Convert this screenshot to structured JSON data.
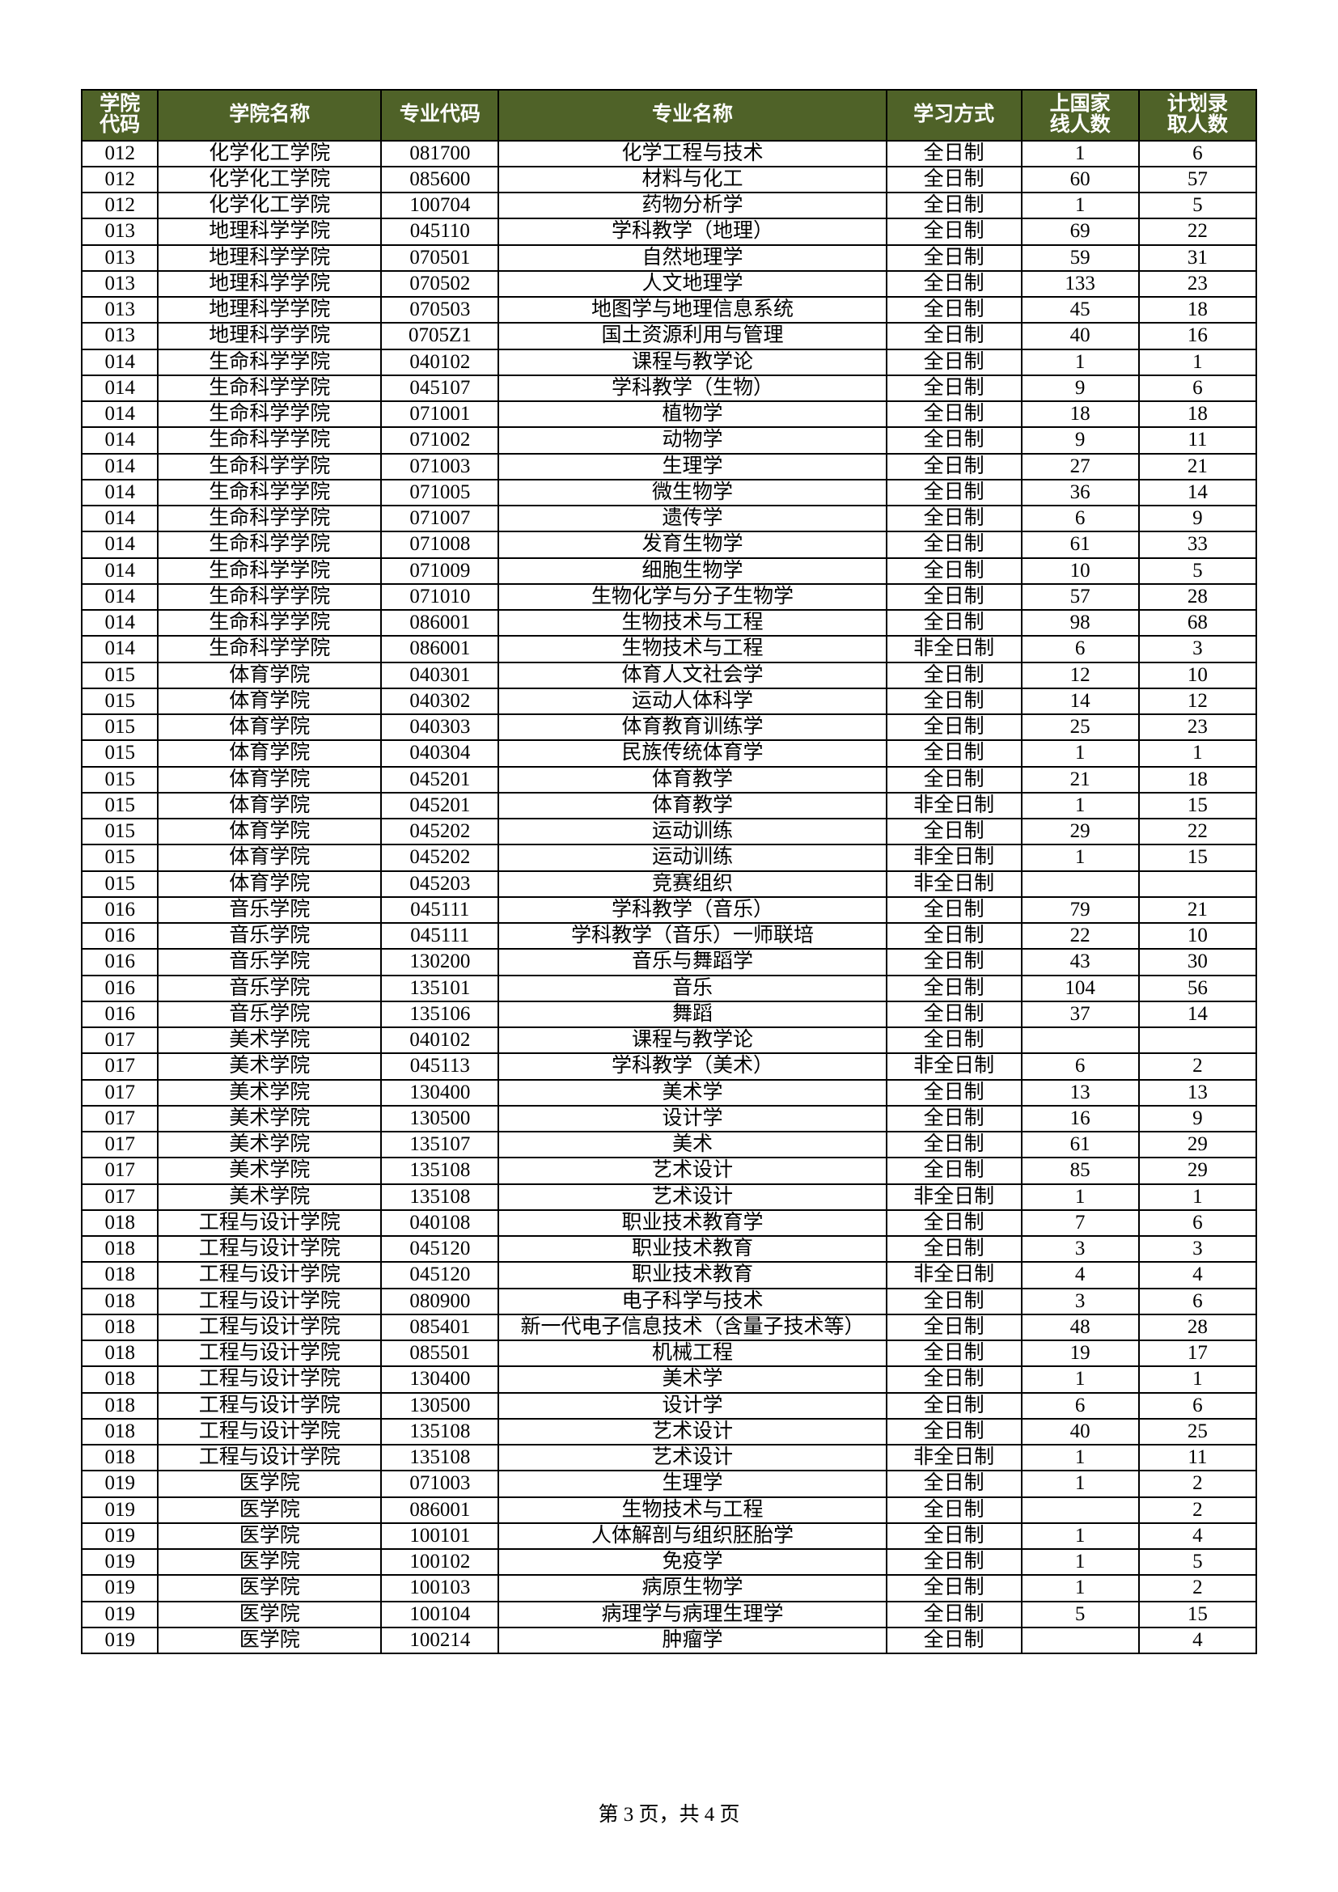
{
  "table": {
    "header_bg": "#4f6228",
    "header_fg": "#ffffff",
    "border_color": "#000000",
    "columns": [
      "学院代码",
      "学院名称",
      "专业代码",
      "专业名称",
      "学习方式",
      "上国家线人数",
      "计划录取人数"
    ],
    "rows": [
      [
        "012",
        "化学化工学院",
        "081700",
        "化学工程与技术",
        "全日制",
        "1",
        "6"
      ],
      [
        "012",
        "化学化工学院",
        "085600",
        "材料与化工",
        "全日制",
        "60",
        "57"
      ],
      [
        "012",
        "化学化工学院",
        "100704",
        "药物分析学",
        "全日制",
        "1",
        "5"
      ],
      [
        "013",
        "地理科学学院",
        "045110",
        "学科教学（地理）",
        "全日制",
        "69",
        "22"
      ],
      [
        "013",
        "地理科学学院",
        "070501",
        "自然地理学",
        "全日制",
        "59",
        "31"
      ],
      [
        "013",
        "地理科学学院",
        "070502",
        "人文地理学",
        "全日制",
        "133",
        "23"
      ],
      [
        "013",
        "地理科学学院",
        "070503",
        "地图学与地理信息系统",
        "全日制",
        "45",
        "18"
      ],
      [
        "013",
        "地理科学学院",
        "0705Z1",
        "国土资源利用与管理",
        "全日制",
        "40",
        "16"
      ],
      [
        "014",
        "生命科学学院",
        "040102",
        "课程与教学论",
        "全日制",
        "1",
        "1"
      ],
      [
        "014",
        "生命科学学院",
        "045107",
        "学科教学（生物）",
        "全日制",
        "9",
        "6"
      ],
      [
        "014",
        "生命科学学院",
        "071001",
        "植物学",
        "全日制",
        "18",
        "18"
      ],
      [
        "014",
        "生命科学学院",
        "071002",
        "动物学",
        "全日制",
        "9",
        "11"
      ],
      [
        "014",
        "生命科学学院",
        "071003",
        "生理学",
        "全日制",
        "27",
        "21"
      ],
      [
        "014",
        "生命科学学院",
        "071005",
        "微生物学",
        "全日制",
        "36",
        "14"
      ],
      [
        "014",
        "生命科学学院",
        "071007",
        "遗传学",
        "全日制",
        "6",
        "9"
      ],
      [
        "014",
        "生命科学学院",
        "071008",
        "发育生物学",
        "全日制",
        "61",
        "33"
      ],
      [
        "014",
        "生命科学学院",
        "071009",
        "细胞生物学",
        "全日制",
        "10",
        "5"
      ],
      [
        "014",
        "生命科学学院",
        "071010",
        "生物化学与分子生物学",
        "全日制",
        "57",
        "28"
      ],
      [
        "014",
        "生命科学学院",
        "086001",
        "生物技术与工程",
        "全日制",
        "98",
        "68"
      ],
      [
        "014",
        "生命科学学院",
        "086001",
        "生物技术与工程",
        "非全日制",
        "6",
        "3"
      ],
      [
        "015",
        "体育学院",
        "040301",
        "体育人文社会学",
        "全日制",
        "12",
        "10"
      ],
      [
        "015",
        "体育学院",
        "040302",
        "运动人体科学",
        "全日制",
        "14",
        "12"
      ],
      [
        "015",
        "体育学院",
        "040303",
        "体育教育训练学",
        "全日制",
        "25",
        "23"
      ],
      [
        "015",
        "体育学院",
        "040304",
        "民族传统体育学",
        "全日制",
        "1",
        "1"
      ],
      [
        "015",
        "体育学院",
        "045201",
        "体育教学",
        "全日制",
        "21",
        "18"
      ],
      [
        "015",
        "体育学院",
        "045201",
        "体育教学",
        "非全日制",
        "1",
        "15"
      ],
      [
        "015",
        "体育学院",
        "045202",
        "运动训练",
        "全日制",
        "29",
        "22"
      ],
      [
        "015",
        "体育学院",
        "045202",
        "运动训练",
        "非全日制",
        "1",
        "15"
      ],
      [
        "015",
        "体育学院",
        "045203",
        "竞赛组织",
        "非全日制",
        "",
        ""
      ],
      [
        "016",
        "音乐学院",
        "045111",
        "学科教学（音乐）",
        "全日制",
        "79",
        "21"
      ],
      [
        "016",
        "音乐学院",
        "045111",
        "学科教学（音乐）一师联培",
        "全日制",
        "22",
        "10"
      ],
      [
        "016",
        "音乐学院",
        "130200",
        "音乐与舞蹈学",
        "全日制",
        "43",
        "30"
      ],
      [
        "016",
        "音乐学院",
        "135101",
        "音乐",
        "全日制",
        "104",
        "56"
      ],
      [
        "016",
        "音乐学院",
        "135106",
        "舞蹈",
        "全日制",
        "37",
        "14"
      ],
      [
        "017",
        "美术学院",
        "040102",
        "课程与教学论",
        "全日制",
        "",
        ""
      ],
      [
        "017",
        "美术学院",
        "045113",
        "学科教学（美术）",
        "非全日制",
        "6",
        "2"
      ],
      [
        "017",
        "美术学院",
        "130400",
        "美术学",
        "全日制",
        "13",
        "13"
      ],
      [
        "017",
        "美术学院",
        "130500",
        "设计学",
        "全日制",
        "16",
        "9"
      ],
      [
        "017",
        "美术学院",
        "135107",
        "美术",
        "全日制",
        "61",
        "29"
      ],
      [
        "017",
        "美术学院",
        "135108",
        "艺术设计",
        "全日制",
        "85",
        "29"
      ],
      [
        "017",
        "美术学院",
        "135108",
        "艺术设计",
        "非全日制",
        "1",
        "1"
      ],
      [
        "018",
        "工程与设计学院",
        "040108",
        "职业技术教育学",
        "全日制",
        "7",
        "6"
      ],
      [
        "018",
        "工程与设计学院",
        "045120",
        "职业技术教育",
        "全日制",
        "3",
        "3"
      ],
      [
        "018",
        "工程与设计学院",
        "045120",
        "职业技术教育",
        "非全日制",
        "4",
        "4"
      ],
      [
        "018",
        "工程与设计学院",
        "080900",
        "电子科学与技术",
        "全日制",
        "3",
        "6"
      ],
      [
        "018",
        "工程与设计学院",
        "085401",
        "新一代电子信息技术（含量子技术等）",
        "全日制",
        "48",
        "28"
      ],
      [
        "018",
        "工程与设计学院",
        "085501",
        "机械工程",
        "全日制",
        "19",
        "17"
      ],
      [
        "018",
        "工程与设计学院",
        "130400",
        "美术学",
        "全日制",
        "1",
        "1"
      ],
      [
        "018",
        "工程与设计学院",
        "130500",
        "设计学",
        "全日制",
        "6",
        "6"
      ],
      [
        "018",
        "工程与设计学院",
        "135108",
        "艺术设计",
        "全日制",
        "40",
        "25"
      ],
      [
        "018",
        "工程与设计学院",
        "135108",
        "艺术设计",
        "非全日制",
        "1",
        "11"
      ],
      [
        "019",
        "医学院",
        "071003",
        "生理学",
        "全日制",
        "1",
        "2"
      ],
      [
        "019",
        "医学院",
        "086001",
        "生物技术与工程",
        "全日制",
        "",
        "2"
      ],
      [
        "019",
        "医学院",
        "100101",
        "人体解剖与组织胚胎学",
        "全日制",
        "1",
        "4"
      ],
      [
        "019",
        "医学院",
        "100102",
        "免疫学",
        "全日制",
        "1",
        "5"
      ],
      [
        "019",
        "医学院",
        "100103",
        "病原生物学",
        "全日制",
        "1",
        "2"
      ],
      [
        "019",
        "医学院",
        "100104",
        "病理学与病理生理学",
        "全日制",
        "5",
        "15"
      ],
      [
        "019",
        "医学院",
        "100214",
        "肿瘤学",
        "全日制",
        "",
        "4"
      ]
    ]
  },
  "footer": "第 3 页，共 4 页"
}
